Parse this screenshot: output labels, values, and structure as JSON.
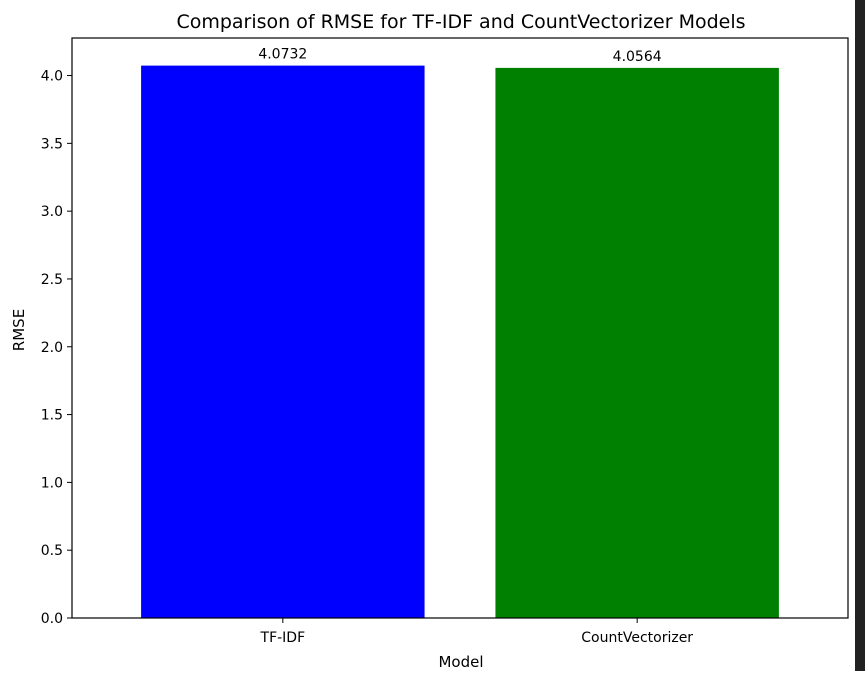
{
  "chart_data": {
    "type": "bar",
    "title": "Comparison of RMSE for TF-IDF and CountVectorizer Models",
    "xlabel": "Model",
    "ylabel": "RMSE",
    "categories": [
      "TF-IDF",
      "CountVectorizer"
    ],
    "values": [
      4.0732,
      4.0564
    ],
    "value_labels": [
      "4.0732",
      "4.0564"
    ],
    "colors": [
      "#0000ff",
      "#008000"
    ],
    "ylim": [
      0,
      4.2768
    ],
    "yticks": [
      0.0,
      0.5,
      1.0,
      1.5,
      2.0,
      2.5,
      3.0,
      3.5,
      4.0
    ],
    "ytick_labels": [
      "0.0",
      "0.5",
      "1.0",
      "1.5",
      "2.0",
      "2.5",
      "3.0",
      "3.5",
      "4.0"
    ],
    "grid": false,
    "legend": "none"
  }
}
